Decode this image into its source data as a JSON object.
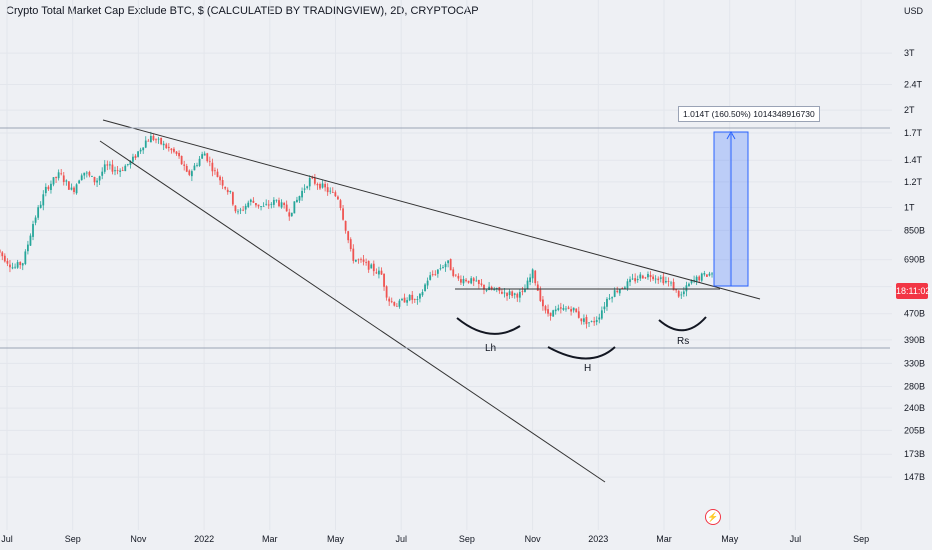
{
  "header": {
    "title": "Crypto Total Market Cap Exclude BTC, $ (CALCULATED BY TRADINGVIEW), 2D, CRYPTOCAP"
  },
  "price_tag": "18:11:02",
  "measure_label": "1.014T (160.50%) 1014348916730",
  "logo": "⚡",
  "chart_data": {
    "type": "candlestick",
    "title": "Crypto Total Market Cap Exclude BTC, $ (CALCULATED BY TRADINGVIEW), 2D, CRYPTOCAP",
    "yaxis": {
      "unit": "USD",
      "scale": "log",
      "ticks": [
        {
          "label": "3T",
          "value": 3000
        },
        {
          "label": "2.4T",
          "value": 2400
        },
        {
          "label": "2T",
          "value": 2000
        },
        {
          "label": "1.7T",
          "value": 1700
        },
        {
          "label": "1.4T",
          "value": 1400
        },
        {
          "label": "1.2T",
          "value": 1200
        },
        {
          "label": "1T",
          "value": 1000
        },
        {
          "label": "850B",
          "value": 850
        },
        {
          "label": "690B",
          "value": 690
        },
        {
          "label": "570B",
          "value": 570
        },
        {
          "label": "470B",
          "value": 470
        },
        {
          "label": "390B",
          "value": 390
        },
        {
          "label": "330B",
          "value": 330
        },
        {
          "label": "280B",
          "value": 280
        },
        {
          "label": "240B",
          "value": 240
        },
        {
          "label": "205B",
          "value": 205
        },
        {
          "label": "173B",
          "value": 173
        },
        {
          "label": "147B",
          "value": 147
        }
      ]
    },
    "xaxis": {
      "ticks": [
        {
          "label": "Jul",
          "month": 0
        },
        {
          "label": "Sep",
          "month": 2
        },
        {
          "label": "Nov",
          "month": 4
        },
        {
          "label": "2022",
          "month": 6
        },
        {
          "label": "Mar",
          "month": 8
        },
        {
          "label": "May",
          "month": 10
        },
        {
          "label": "Jul",
          "month": 12
        },
        {
          "label": "Sep",
          "month": 14
        },
        {
          "label": "Nov",
          "month": 16
        },
        {
          "label": "2023",
          "month": 18
        },
        {
          "label": "Mar",
          "month": 20
        },
        {
          "label": "May",
          "month": 22
        },
        {
          "label": "Jul",
          "month": 24
        },
        {
          "label": "Sep",
          "month": 26
        }
      ]
    },
    "path": [
      [
        -0.3,
        740
      ],
      [
        0.2,
        650
      ],
      [
        0.5,
        680
      ],
      [
        0.8,
        900
      ],
      [
        1.2,
        1150
      ],
      [
        1.6,
        1270
      ],
      [
        2.0,
        1120
      ],
      [
        2.3,
        1300
      ],
      [
        2.7,
        1200
      ],
      [
        3.0,
        1340
      ],
      [
        3.4,
        1300
      ],
      [
        3.8,
        1390
      ],
      [
        4.2,
        1600
      ],
      [
        4.4,
        1650
      ],
      [
        4.8,
        1550
      ],
      [
        5.2,
        1450
      ],
      [
        5.5,
        1250
      ],
      [
        6.0,
        1480
      ],
      [
        6.3,
        1300
      ],
      [
        6.8,
        1100
      ],
      [
        7.0,
        950
      ],
      [
        7.4,
        1050
      ],
      [
        7.8,
        1000
      ],
      [
        8.2,
        1050
      ],
      [
        8.6,
        960
      ],
      [
        9.0,
        1130
      ],
      [
        9.2,
        1220
      ],
      [
        9.5,
        1180
      ],
      [
        9.8,
        1120
      ],
      [
        10.1,
        1070
      ],
      [
        10.3,
        870
      ],
      [
        10.5,
        700
      ],
      [
        11.0,
        660
      ],
      [
        11.4,
        620
      ],
      [
        11.6,
        520
      ],
      [
        11.9,
        500
      ],
      [
        12.2,
        530
      ],
      [
        12.5,
        510
      ],
      [
        12.8,
        600
      ],
      [
        13.1,
        640
      ],
      [
        13.4,
        680
      ],
      [
        13.7,
        600
      ],
      [
        14.0,
        600
      ],
      [
        14.3,
        580
      ],
      [
        14.6,
        560
      ],
      [
        15.0,
        550
      ],
      [
        15.4,
        540
      ],
      [
        15.7,
        540
      ],
      [
        16.0,
        630
      ],
      [
        16.2,
        540
      ],
      [
        16.4,
        470
      ],
      [
        16.8,
        480
      ],
      [
        17.2,
        490
      ],
      [
        17.5,
        450
      ],
      [
        17.8,
        440
      ],
      [
        18.0,
        460
      ],
      [
        18.3,
        530
      ],
      [
        18.6,
        560
      ],
      [
        19.0,
        590
      ],
      [
        19.3,
        615
      ],
      [
        19.6,
        620
      ],
      [
        19.9,
        605
      ],
      [
        20.2,
        580
      ],
      [
        20.5,
        530
      ],
      [
        20.8,
        585
      ],
      [
        21.1,
        610
      ],
      [
        21.4,
        625
      ],
      [
        21.5,
        630
      ]
    ],
    "annotations": [
      {
        "text": "Lh"
      },
      {
        "text": "H"
      },
      {
        "text": "Rs"
      }
    ],
    "grid": true,
    "legend": "none"
  }
}
